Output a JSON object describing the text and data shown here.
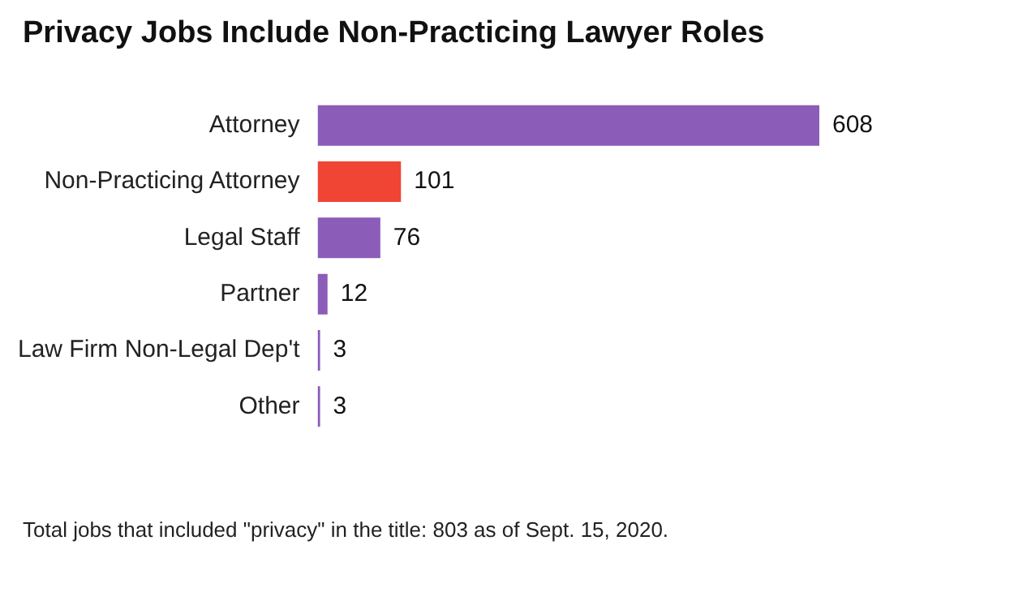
{
  "chart_data": {
    "type": "bar",
    "orientation": "horizontal",
    "title": "Privacy Jobs Include Non-Practicing Lawyer Roles",
    "categories": [
      "Attorney",
      "Non-Practicing Attorney",
      "Legal Staff",
      "Partner",
      "Law Firm Non-Legal Dep't",
      "Other"
    ],
    "values": [
      608,
      101,
      76,
      12,
      3,
      3
    ],
    "colors": [
      "#8b5cb8",
      "#f04535",
      "#8b5cb8",
      "#8b5cb8",
      "#8b5cb8",
      "#8b5cb8"
    ],
    "data_labels": true,
    "legend": false,
    "annotations": [
      "Total jobs that included \"privacy\" in the title: 803 as of Sept. 15, 2020."
    ]
  }
}
